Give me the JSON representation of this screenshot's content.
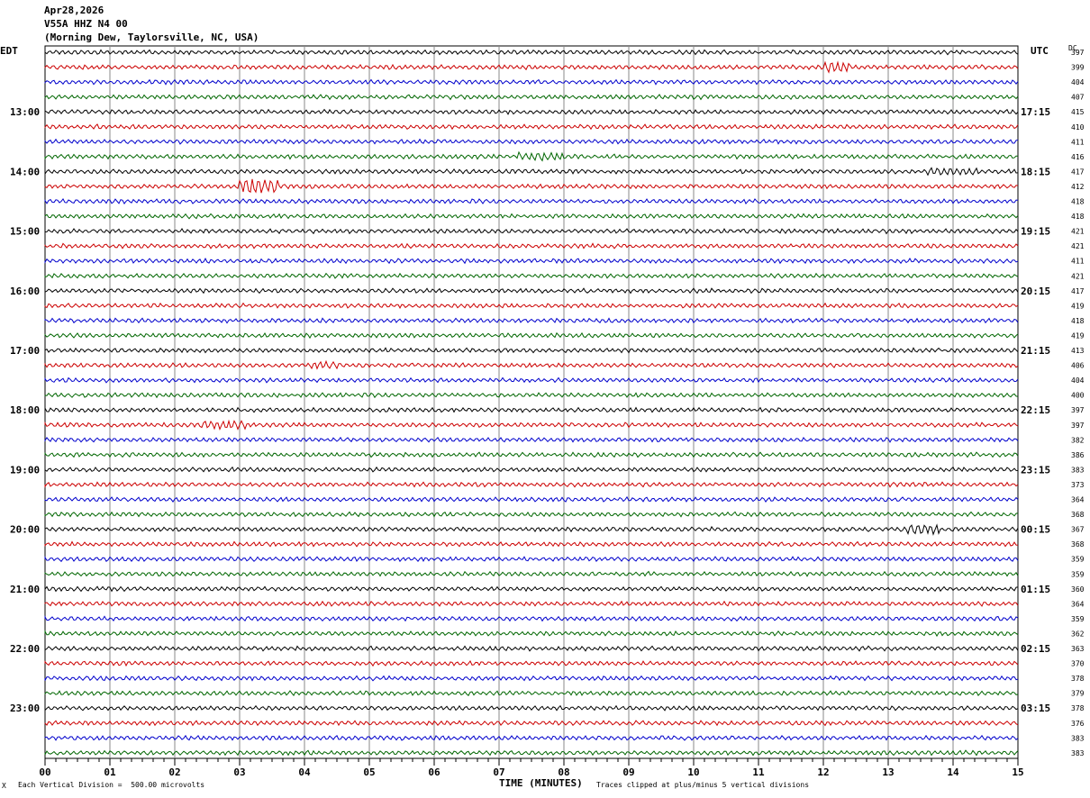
{
  "header": {
    "date": "Apr28,2026",
    "station": "V55A HHZ N4 00",
    "location": "(Morning Dew, Taylorsville, NC, USA)"
  },
  "labels": {
    "left_tz": "EDT",
    "right_tz": "UTC",
    "dc": "DC"
  },
  "footer": {
    "scale": "Each Vertical Division =  500.00 microvolts",
    "clip": "Traces clipped at plus/minus 5 vertical divisions",
    "corner": "X"
  },
  "chart_data": {
    "type": "helicorder",
    "xlabel": "TIME (MINUTES)",
    "x_ticks": [
      "00",
      "01",
      "02",
      "03",
      "04",
      "05",
      "06",
      "07",
      "08",
      "09",
      "10",
      "11",
      "12",
      "13",
      "14",
      "15"
    ],
    "xlim": [
      0,
      15
    ],
    "trace_colors": [
      "#000000",
      "#cc0000",
      "#0000cc",
      "#006600"
    ],
    "left_hour_labels": [
      "13:00",
      "14:00",
      "15:00",
      "16:00",
      "17:00",
      "18:00",
      "19:00",
      "20:00",
      "21:00",
      "22:00",
      "23:00"
    ],
    "right_hour_labels": [
      "17:15",
      "18:15",
      "19:15",
      "20:15",
      "21:15",
      "22:15",
      "23:15",
      "00:15",
      "01:15",
      "02:15",
      "03:15"
    ],
    "dc_offsets": [
      397,
      399,
      404,
      407,
      415,
      410,
      411,
      416,
      417,
      412,
      418,
      418,
      421,
      421,
      411,
      421,
      417,
      419,
      418,
      419,
      413,
      406,
      404,
      400,
      397,
      397,
      382,
      386,
      383,
      373,
      364,
      368,
      367,
      368,
      359,
      359,
      360,
      364,
      359,
      362,
      363,
      370,
      378,
      379,
      378,
      376,
      383,
      383
    ]
  }
}
